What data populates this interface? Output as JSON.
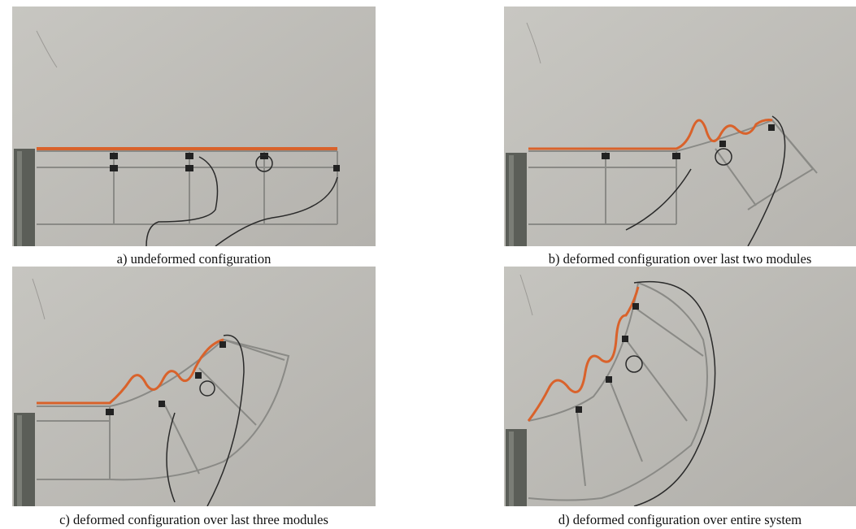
{
  "figure": {
    "panels": [
      {
        "id": "a",
        "caption": "a) undeformed configuration"
      },
      {
        "id": "b",
        "caption": "b) deformed configuration over last two modules"
      },
      {
        "id": "c",
        "caption": "c) deformed configuration over last three modules"
      },
      {
        "id": "d",
        "caption": "d) deformed configuration over entire system"
      }
    ]
  },
  "colors": {
    "wall": "#bdbbb6",
    "stand": "#5b5e58",
    "cable": "#d9622b",
    "frame": "#8a8a86",
    "wire": "#2a2a2a"
  }
}
